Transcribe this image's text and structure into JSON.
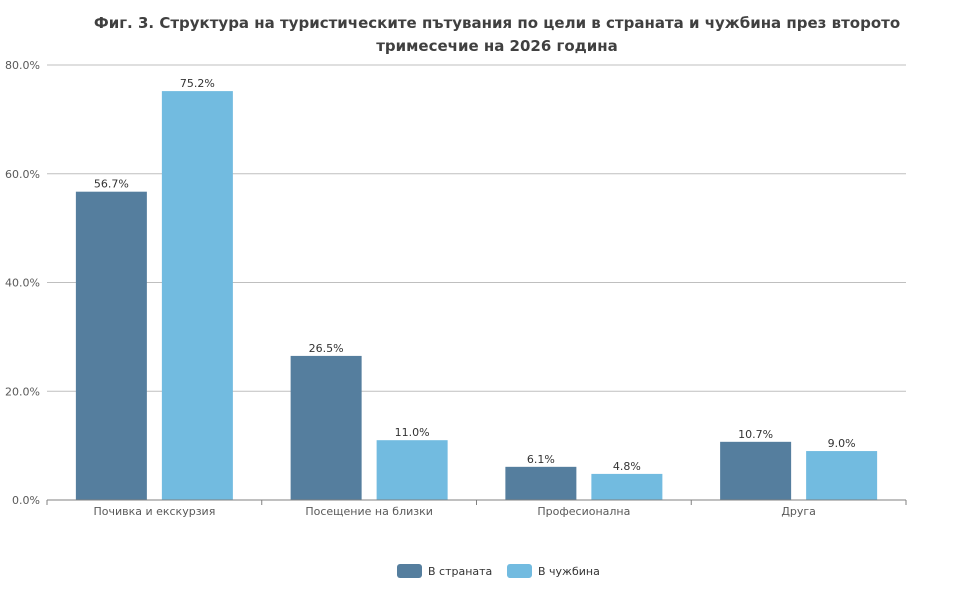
{
  "chart_data": {
    "type": "bar",
    "title_line1": "Фиг. 3. Структура на туристическите пътувания по цели в страната и чужбина през второто",
    "title_line2": "тримесечие на 2026 година",
    "categories": [
      "Почивка и екскурзия",
      "Посещение на близки",
      "Професионална",
      "Друга"
    ],
    "series": [
      {
        "name": "В страната",
        "values": [
          56.7,
          26.5,
          6.1,
          10.7
        ],
        "labels": [
          "56.7%",
          "26.5%",
          "6.1%",
          "10.7%"
        ],
        "color": "#557e9e"
      },
      {
        "name": "В чужбина",
        "values": [
          75.2,
          11.0,
          4.8,
          9.0
        ],
        "labels": [
          "75.2%",
          "11.0%",
          "4.8%",
          "9.0%"
        ],
        "color": "#72bbe0"
      }
    ],
    "ylim": [
      0,
      80
    ],
    "yticks": [
      "0.0%",
      "20.0%",
      "40.0%",
      "60.0%",
      "80.0%"
    ],
    "ytick_values": [
      0,
      20,
      40,
      60,
      80
    ],
    "grid": true,
    "legend_position": "bottom"
  }
}
